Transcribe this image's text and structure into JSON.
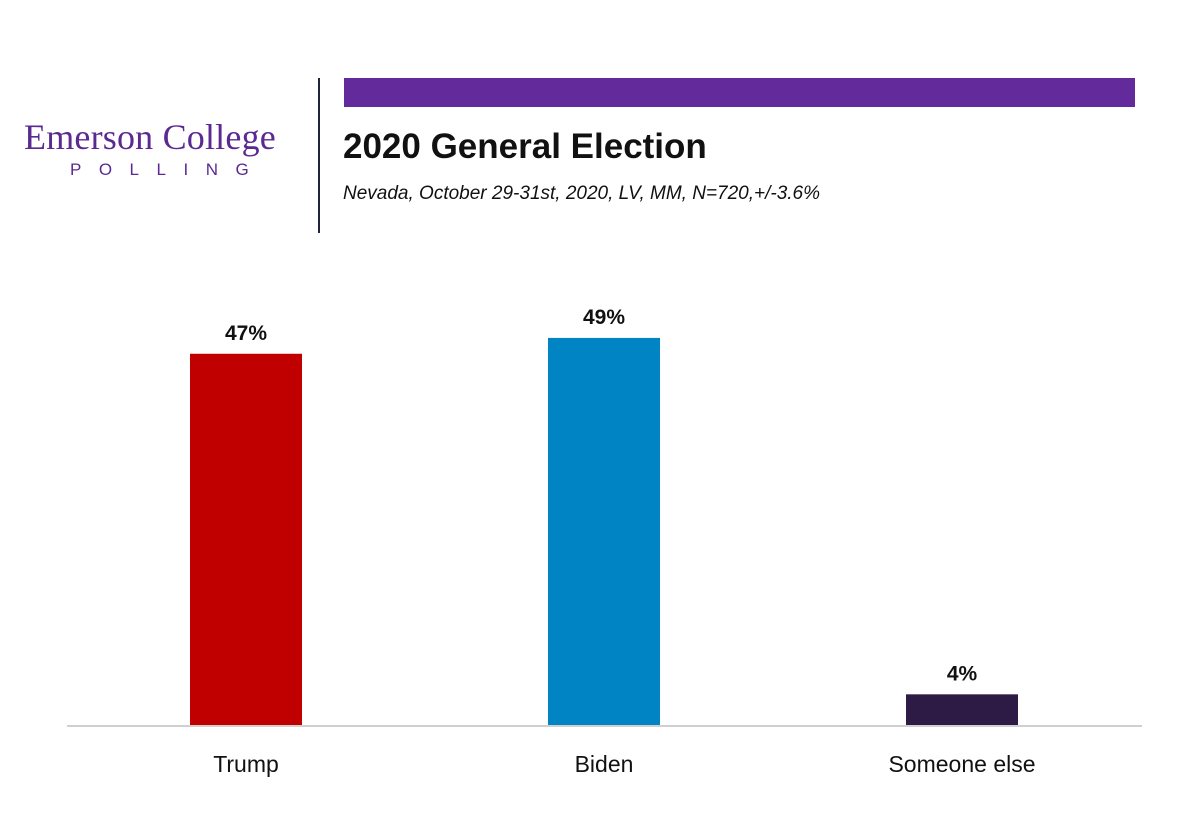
{
  "header": {
    "logo_main": "Emerson College",
    "logo_sub": "POLLING",
    "accent_color": "#622a9a"
  },
  "chart_data": {
    "type": "bar",
    "title": "2020 General Election",
    "subtitle": "Nevada, October 29-31st, 2020, LV, MM,  N=720,+/-3.6%",
    "categories": [
      "Trump",
      "Biden",
      "Someone else"
    ],
    "values": [
      47,
      49,
      4
    ],
    "value_labels": [
      "47%",
      "49%",
      "4%"
    ],
    "colors": [
      "#c00000",
      "#0084c4",
      "#2e1b45"
    ],
    "unit": "%",
    "xlabel": "",
    "ylabel": "",
    "ylim": [
      0,
      50
    ],
    "grid": false,
    "legend": "none"
  }
}
